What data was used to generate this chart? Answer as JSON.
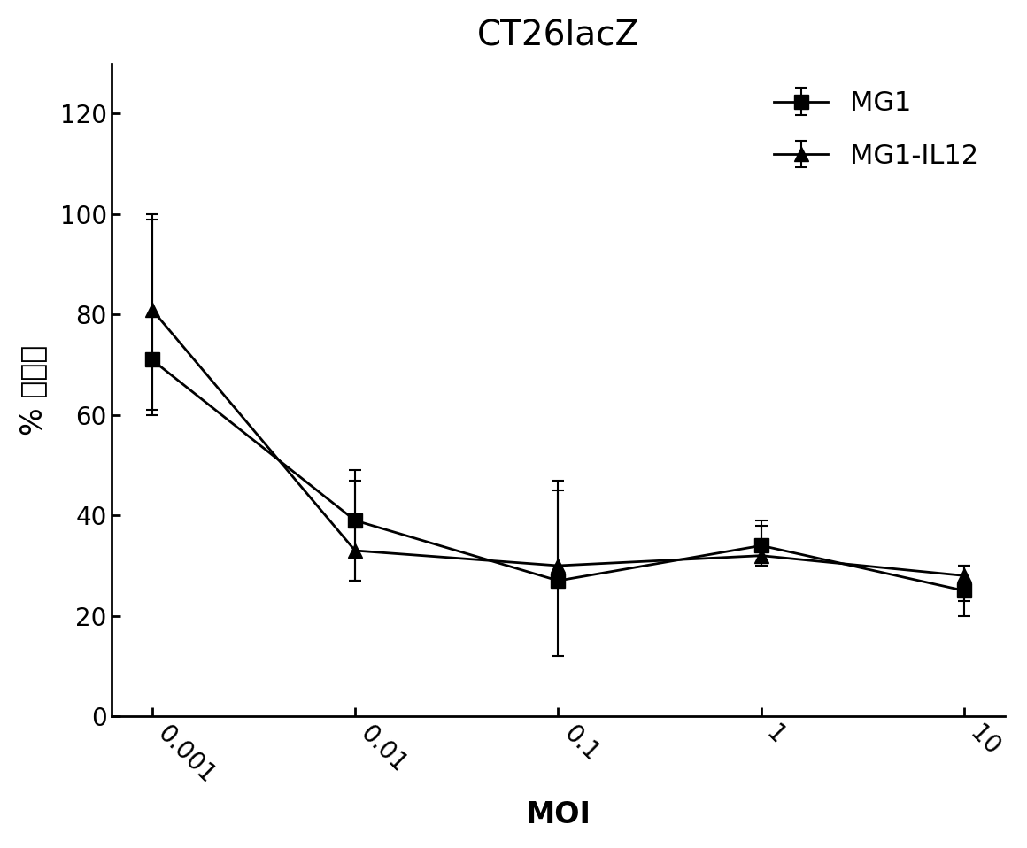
{
  "title": "CT26lacZ",
  "xlabel": "MOI",
  "ylabel": "% 活细胞",
  "x_values": [
    0.001,
    0.01,
    0.1,
    1,
    10
  ],
  "MG1_y": [
    71,
    39,
    27,
    34,
    25
  ],
  "MG1_yerr_upper": [
    29,
    10,
    18,
    5,
    5
  ],
  "MG1_yerr_lower": [
    11,
    12,
    0,
    2,
    2
  ],
  "MG1IL12_y": [
    81,
    33,
    30,
    32,
    28
  ],
  "MG1IL12_yerr_upper": [
    18,
    14,
    17,
    6,
    2
  ],
  "MG1IL12_yerr_lower": [
    20,
    6,
    18,
    2,
    8
  ],
  "ylim": [
    0,
    130
  ],
  "yticks": [
    0,
    20,
    40,
    60,
    80,
    100,
    120
  ],
  "x_ticklabels": [
    "0.001",
    "0.01",
    "0.1",
    "1",
    "10"
  ],
  "line_color": "#000000",
  "background_color": "#ffffff",
  "title_fontsize": 28,
  "label_fontsize": 24,
  "tick_fontsize": 20,
  "legend_fontsize": 22,
  "linewidth": 2.0,
  "markersize": 11
}
